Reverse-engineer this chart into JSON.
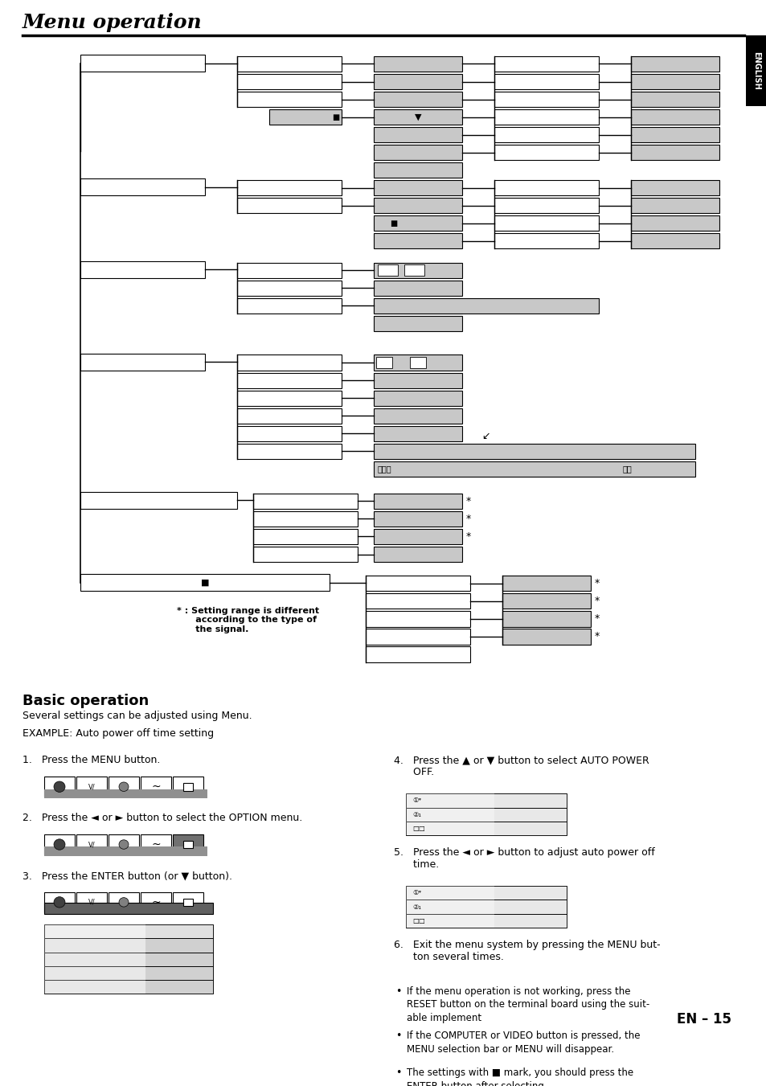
{
  "title": "Menu operation",
  "page_num": "EN – 15",
  "sidebar_text": "ENGLISH",
  "note_text": "* : Setting range is different\n      according to the type of\n      the signal.",
  "basic_op_title": "Basic operation",
  "basic_op_text1": "Several settings can be adjusted using Menu.",
  "basic_op_example": "EXAMPLE: Auto power off time setting",
  "step1": "1.   Press the MENU button.",
  "step2": "2.   Press the ◄ or ► button to select the OPTION menu.",
  "step3": "3.   Press the ENTER button (or ▼ button).",
  "step4": "4.   Press the ▲ or ▼ button to select AUTO POWER\n      OFF.",
  "step5": "5.   Press the ◄ or ► button to adjust auto power off\n      time.",
  "step6": "6.   Exit the menu system by pressing the MENU but-\n      ton several times.",
  "bullet1": "If the menu operation is not working, press the\nRESET button on the terminal board using the suit-\nable implement",
  "bullet2": "If the COMPUTER or VIDEO button is pressed, the\nMENU selection bar or MENU will disappear.",
  "bullet3": "The settings with ■ mark, you should press the\nENTER button after selecting.",
  "W": "#ffffff",
  "G": "#c8c8c8",
  "BK": "#000000",
  "DG": "#686868"
}
